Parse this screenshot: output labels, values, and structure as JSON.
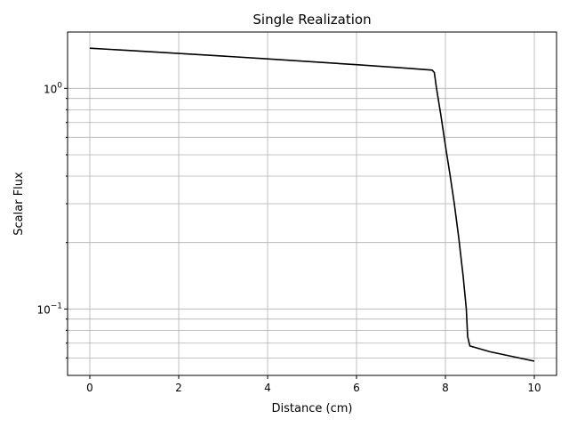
{
  "chart_data": {
    "type": "line",
    "title": "Single Realization",
    "xlabel": "Distance (cm)",
    "ylabel": "Scalar Flux",
    "yscale": "log",
    "grid": true,
    "xlim": [
      -0.5,
      10.5
    ],
    "ylim": [
      0.05,
      1.8
    ],
    "x_ticks": [
      0,
      2,
      4,
      6,
      8,
      10
    ],
    "x_tick_labels": [
      "0",
      "2",
      "4",
      "6",
      "8",
      "10"
    ],
    "y_major_ticks": [
      0.1,
      1.0
    ],
    "y_major_tick_labels": [
      "10",
      "10"
    ],
    "y_major_tick_exponents": [
      "−1",
      "0"
    ],
    "y_minor_ticks": [
      0.06,
      0.07,
      0.08,
      0.09,
      0.2,
      0.3,
      0.4,
      0.5,
      0.6,
      0.7,
      0.8,
      0.9
    ],
    "line_color": "#000000",
    "series": [
      {
        "x": [
          0.0,
          1.0,
          2.0,
          3.0,
          4.0,
          5.0,
          6.0,
          7.0,
          7.7,
          7.75,
          7.8,
          7.9,
          8.0,
          8.1,
          8.2,
          8.3,
          8.4,
          8.47,
          8.5,
          8.55,
          9.0,
          10.0
        ],
        "y": [
          1.52,
          1.48,
          1.44,
          1.4,
          1.36,
          1.32,
          1.28,
          1.24,
          1.21,
          1.18,
          1.0,
          0.75,
          0.55,
          0.41,
          0.3,
          0.21,
          0.14,
          0.1,
          0.075,
          0.068,
          0.064,
          0.058
        ]
      }
    ]
  }
}
